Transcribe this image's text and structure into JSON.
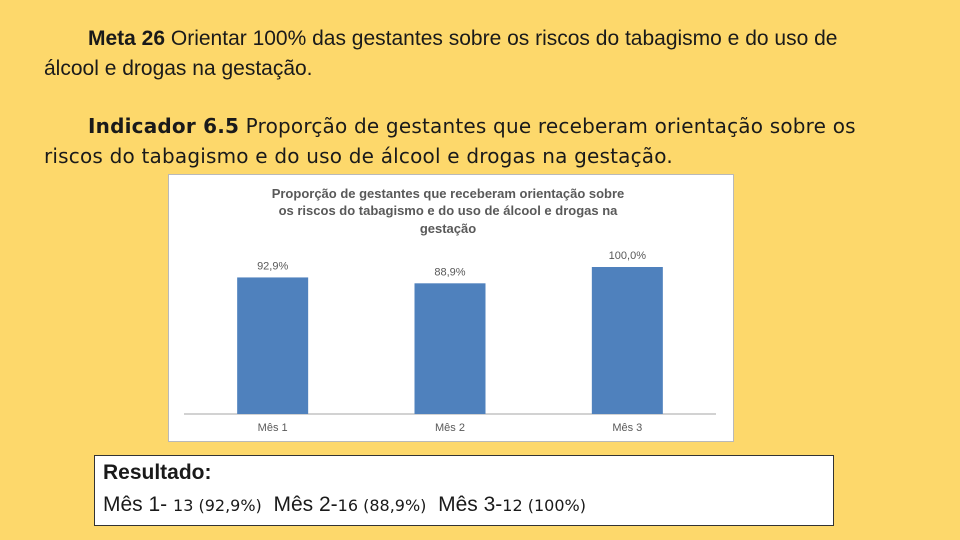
{
  "meta": {
    "label": "Meta 26",
    "text": " Orientar 100% das gestantes sobre os riscos do tabagismo e do uso de álcool e drogas na gestação."
  },
  "indicador": {
    "label": "Indicador 6.5",
    "text": " Proporção de gestantes que receberam orientação sobre os riscos do tabagismo e do uso de álcool e drogas na gestação."
  },
  "chart_data": {
    "type": "bar",
    "title_lines": [
      "Proporção de gestantes que receberam orientação sobre",
      "os riscos do tabagismo e do uso de álcool e drogas na",
      "gestação"
    ],
    "categories": [
      "Mês 1",
      "Mês 2",
      "Mês 3"
    ],
    "values": [
      92.9,
      88.9,
      100.0
    ],
    "data_labels": [
      "92,9%",
      "88,9%",
      "100,0%"
    ],
    "ylim": [
      0,
      100
    ],
    "grid": false,
    "legend": "none",
    "bar_color": "#4F81BD"
  },
  "resultado": {
    "title": "Resultado:",
    "m1": "Mês 1- ",
    "m1_val": "13 (92,9%)",
    "m2": "  Mês 2-",
    "m2_val": "16 (88,9%)",
    "m3": "  Mês 3-",
    "m3_val": "12 (100%)"
  }
}
